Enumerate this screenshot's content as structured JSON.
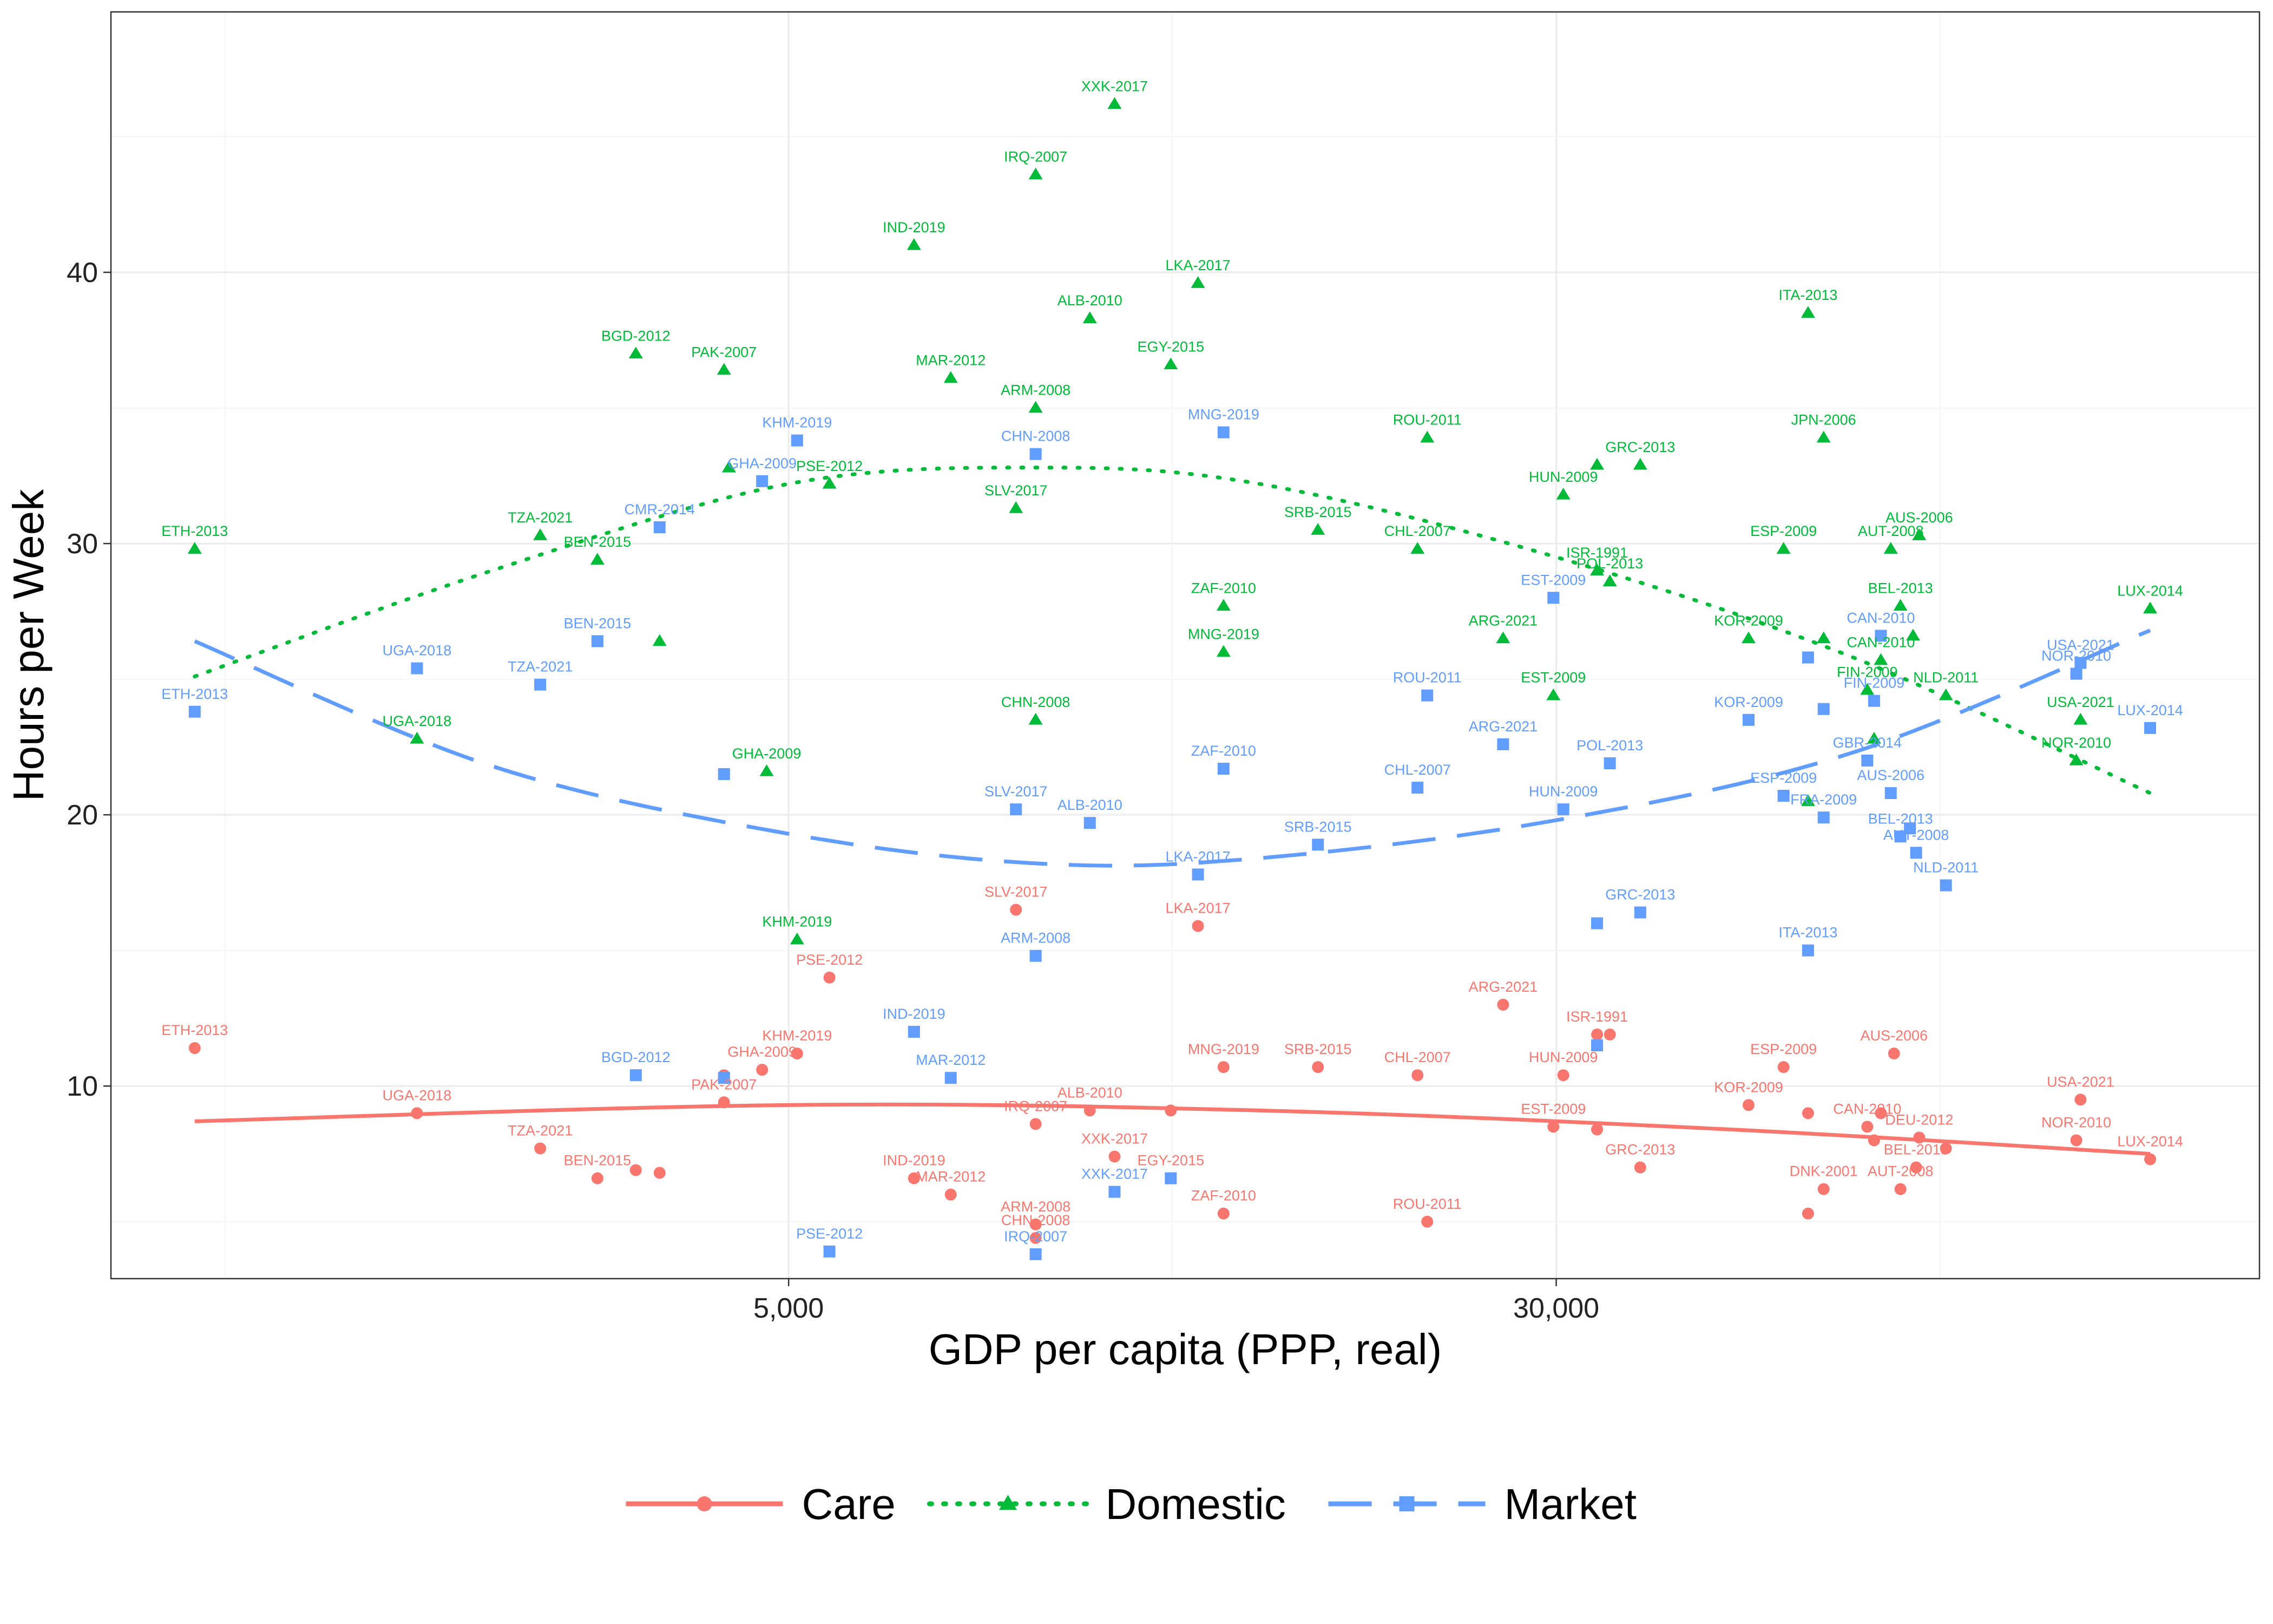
{
  "chart_data": {
    "type": "scatter",
    "title": "",
    "xlabel": "GDP per capita (PPP, real)",
    "ylabel": "Hours per Week",
    "x_scale": "log",
    "x_ticks": [
      {
        "value": 5000,
        "label": "5,000"
      },
      {
        "value": 30000,
        "label": "30,000"
      }
    ],
    "y_ticks": [
      {
        "value": 10,
        "label": "10"
      },
      {
        "value": 20,
        "label": "20"
      },
      {
        "value": 30,
        "label": "30"
      },
      {
        "value": 40,
        "label": "40"
      }
    ],
    "xlim": [
      1000,
      150000
    ],
    "ylim": [
      3,
      48
    ],
    "legend_position": "bottom",
    "series": [
      {
        "name": "Care",
        "color": "#F8766D",
        "marker": "circle",
        "line_style": "solid",
        "trend": [
          [
            1250,
            8.7
          ],
          [
            5000,
            9.3
          ],
          [
            15000,
            9.1
          ],
          [
            45000,
            8.4
          ],
          [
            120000,
            7.5
          ]
        ],
        "points": [
          {
            "label": "ETH-2013",
            "x": 1250,
            "y": 11.4
          },
          {
            "label": "UGA-2018",
            "x": 2100,
            "y": 9.0
          },
          {
            "label": "TZA-2021",
            "x": 2800,
            "y": 7.7
          },
          {
            "label": "BEN-2015",
            "x": 3200,
            "y": 6.6
          },
          {
            "label": "",
            "x": 3500,
            "y": 6.9
          },
          {
            "label": "",
            "x": 3700,
            "y": 6.8
          },
          {
            "label": "PAK-2007",
            "x": 4300,
            "y": 9.4
          },
          {
            "label": "",
            "x": 4300,
            "y": 10.4
          },
          {
            "label": "GHA-2009",
            "x": 4700,
            "y": 10.6
          },
          {
            "label": "KHM-2019",
            "x": 5100,
            "y": 11.2
          },
          {
            "label": "PSE-2012",
            "x": 5500,
            "y": 14.0
          },
          {
            "label": "IND-2019",
            "x": 6700,
            "y": 6.6
          },
          {
            "label": "MAR-2012",
            "x": 7300,
            "y": 6.0
          },
          {
            "label": "SLV-2017",
            "x": 8500,
            "y": 16.5
          },
          {
            "label": "ARM-2008",
            "x": 8900,
            "y": 4.9
          },
          {
            "label": "CHN-2008",
            "x": 8900,
            "y": 4.4
          },
          {
            "label": "IRQ-2007",
            "x": 8900,
            "y": 8.6
          },
          {
            "label": "ALB-2010",
            "x": 10100,
            "y": 9.1
          },
          {
            "label": "XXK-2017",
            "x": 10700,
            "y": 7.4
          },
          {
            "label": "",
            "x": 12200,
            "y": 9.1
          },
          {
            "label": "LKA-2017",
            "x": 13000,
            "y": 15.9
          },
          {
            "label": "EGY-2015",
            "x": 12200,
            "y": 6.6
          },
          {
            "label": "ZAF-2010",
            "x": 13800,
            "y": 5.3
          },
          {
            "label": "MNG-2019",
            "x": 13800,
            "y": 10.7
          },
          {
            "label": "SRB-2015",
            "x": 17200,
            "y": 10.7
          },
          {
            "label": "CHL-2007",
            "x": 21700,
            "y": 10.4
          },
          {
            "label": "ROU-2011",
            "x": 22200,
            "y": 5.0
          },
          {
            "label": "ARG-2021",
            "x": 26500,
            "y": 13.0
          },
          {
            "label": "HUN-2009",
            "x": 30500,
            "y": 10.4
          },
          {
            "label": "EST-2009",
            "x": 29800,
            "y": 8.5
          },
          {
            "label": "ISR-1991",
            "x": 33000,
            "y": 11.9
          },
          {
            "label": "",
            "x": 34000,
            "y": 11.9
          },
          {
            "label": "",
            "x": 33000,
            "y": 8.4
          },
          {
            "label": "GRC-2013",
            "x": 36500,
            "y": 7.0
          },
          {
            "label": "KOR-2009",
            "x": 47000,
            "y": 9.3
          },
          {
            "label": "ESP-2009",
            "x": 51000,
            "y": 10.7
          },
          {
            "label": "",
            "x": 54000,
            "y": 9.0
          },
          {
            "label": "DNK-2001",
            "x": 56000,
            "y": 6.2
          },
          {
            "label": "",
            "x": 54000,
            "y": 5.3
          },
          {
            "label": "CAN-2010",
            "x": 62000,
            "y": 8.5
          },
          {
            "label": "",
            "x": 63000,
            "y": 8.0
          },
          {
            "label": "",
            "x": 64000,
            "y": 9.0
          },
          {
            "label": "AUS-2006",
            "x": 66000,
            "y": 11.2
          },
          {
            "label": "AUT-2008",
            "x": 67000,
            "y": 6.2
          },
          {
            "label": "BEL-2013",
            "x": 69500,
            "y": 7.0
          },
          {
            "label": "DEU-2012",
            "x": 70000,
            "y": 8.1
          },
          {
            "label": "",
            "x": 74500,
            "y": 7.7
          },
          {
            "label": "USA-2021",
            "x": 102000,
            "y": 9.5
          },
          {
            "label": "NOR-2010",
            "x": 101000,
            "y": 8.0
          },
          {
            "label": "LUX-2014",
            "x": 120000,
            "y": 7.3
          }
        ]
      },
      {
        "name": "Domestic",
        "color": "#00BA38",
        "marker": "triangle",
        "line_style": "dotted",
        "trend": [
          [
            1250,
            25.1
          ],
          [
            2500,
            29.0
          ],
          [
            5000,
            32.2
          ],
          [
            9000,
            32.8
          ],
          [
            15000,
            32.2
          ],
          [
            30000,
            29.5
          ],
          [
            60000,
            25.8
          ],
          [
            120000,
            20.8
          ]
        ],
        "points": [
          {
            "label": "ETH-2013",
            "x": 1250,
            "y": 29.8
          },
          {
            "label": "UGA-2018",
            "x": 2100,
            "y": 22.8
          },
          {
            "label": "TZA-2021",
            "x": 2800,
            "y": 30.3
          },
          {
            "label": "BEN-2015",
            "x": 3200,
            "y": 29.4
          },
          {
            "label": "",
            "x": 3700,
            "y": 26.4
          },
          {
            "label": "BGD-2012",
            "x": 3500,
            "y": 37.0
          },
          {
            "label": "PAK-2007",
            "x": 4300,
            "y": 36.4
          },
          {
            "label": "",
            "x": 4350,
            "y": 32.8
          },
          {
            "label": "GHA-2009",
            "x": 4750,
            "y": 21.6
          },
          {
            "label": "KHM-2019",
            "x": 5100,
            "y": 15.4
          },
          {
            "label": "PSE-2012",
            "x": 5500,
            "y": 32.2
          },
          {
            "label": "IND-2019",
            "x": 6700,
            "y": 41.0
          },
          {
            "label": "MAR-2012",
            "x": 7300,
            "y": 36.1
          },
          {
            "label": "IRQ-2007",
            "x": 8900,
            "y": 43.6
          },
          {
            "label": "ARM-2008",
            "x": 8900,
            "y": 35.0
          },
          {
            "label": "SLV-2017",
            "x": 8500,
            "y": 31.3
          },
          {
            "label": "CHN-2008",
            "x": 8900,
            "y": 23.5
          },
          {
            "label": "ALB-2010",
            "x": 10100,
            "y": 38.3
          },
          {
            "label": "XXK-2017",
            "x": 10700,
            "y": 46.2
          },
          {
            "label": "LKA-2017",
            "x": 13000,
            "y": 39.6
          },
          {
            "label": "EGY-2015",
            "x": 12200,
            "y": 36.6
          },
          {
            "label": "ZAF-2010",
            "x": 13800,
            "y": 27.7
          },
          {
            "label": "MNG-2019",
            "x": 13800,
            "y": 26.0
          },
          {
            "label": "SRB-2015",
            "x": 17200,
            "y": 30.5
          },
          {
            "label": "CHL-2007",
            "x": 21700,
            "y": 29.8
          },
          {
            "label": "ROU-2011",
            "x": 22200,
            "y": 33.9
          },
          {
            "label": "ARG-2021",
            "x": 26500,
            "y": 26.5
          },
          {
            "label": "EST-2009",
            "x": 29800,
            "y": 24.4
          },
          {
            "label": "HUN-2009",
            "x": 30500,
            "y": 31.8
          },
          {
            "label": "ISR-1991",
            "x": 33000,
            "y": 29.0
          },
          {
            "label": "",
            "x": 33000,
            "y": 32.9
          },
          {
            "label": "POL-2013",
            "x": 34000,
            "y": 28.6
          },
          {
            "label": "GRC-2013",
            "x": 36500,
            "y": 32.9
          },
          {
            "label": "KOR-2009",
            "x": 47000,
            "y": 26.5
          },
          {
            "label": "ESP-2009",
            "x": 51000,
            "y": 29.8
          },
          {
            "label": "ITA-2013",
            "x": 54000,
            "y": 38.5
          },
          {
            "label": "",
            "x": 54000,
            "y": 20.5
          },
          {
            "label": "JPN-2006",
            "x": 56000,
            "y": 33.9
          },
          {
            "label": "",
            "x": 56000,
            "y": 26.5
          },
          {
            "label": "FIN-2009",
            "x": 62000,
            "y": 24.6
          },
          {
            "label": "",
            "x": 63000,
            "y": 22.8
          },
          {
            "label": "CAN-2010",
            "x": 64000,
            "y": 25.7
          },
          {
            "label": "AUT-2008",
            "x": 65500,
            "y": 29.8
          },
          {
            "label": "BEL-2013",
            "x": 67000,
            "y": 27.7
          },
          {
            "label": "",
            "x": 69000,
            "y": 26.6
          },
          {
            "label": "AUS-2006",
            "x": 70000,
            "y": 30.3
          },
          {
            "label": "NLD-2011",
            "x": 74500,
            "y": 24.4
          },
          {
            "label": "NOR-2010",
            "x": 101000,
            "y": 22.0
          },
          {
            "label": "USA-2021",
            "x": 102000,
            "y": 23.5
          },
          {
            "label": "LUX-2014",
            "x": 120000,
            "y": 27.6
          }
        ]
      },
      {
        "name": "Market",
        "color": "#619CFF",
        "marker": "square",
        "line_style": "dashed",
        "trend": [
          [
            1250,
            26.4
          ],
          [
            2500,
            21.8
          ],
          [
            5000,
            19.3
          ],
          [
            9000,
            18.2
          ],
          [
            15000,
            18.4
          ],
          [
            30000,
            19.8
          ],
          [
            60000,
            22.3
          ],
          [
            120000,
            26.8
          ]
        ],
        "points": [
          {
            "label": "ETH-2013",
            "x": 1250,
            "y": 23.8
          },
          {
            "label": "UGA-2018",
            "x": 2100,
            "y": 25.4
          },
          {
            "label": "TZA-2021",
            "x": 2800,
            "y": 24.8
          },
          {
            "label": "BEN-2015",
            "x": 3200,
            "y": 26.4
          },
          {
            "label": "CMR-2014",
            "x": 3700,
            "y": 30.6
          },
          {
            "label": "BGD-2012",
            "x": 3500,
            "y": 10.4
          },
          {
            "label": "",
            "x": 4300,
            "y": 21.5
          },
          {
            "label": "",
            "x": 4300,
            "y": 10.3
          },
          {
            "label": "GHA-2009",
            "x": 4700,
            "y": 32.3
          },
          {
            "label": "KHM-2019",
            "x": 5100,
            "y": 33.8
          },
          {
            "label": "PSE-2012",
            "x": 5500,
            "y": 3.9
          },
          {
            "label": "IND-2019",
            "x": 6700,
            "y": 12.0
          },
          {
            "label": "MAR-2012",
            "x": 7300,
            "y": 10.3
          },
          {
            "label": "SLV-2017",
            "x": 8500,
            "y": 20.2
          },
          {
            "label": "ARM-2008",
            "x": 8900,
            "y": 14.8
          },
          {
            "label": "CHN-2008",
            "x": 8900,
            "y": 33.3
          },
          {
            "label": "IRQ-2007",
            "x": 8900,
            "y": 3.8
          },
          {
            "label": "ALB-2010",
            "x": 10100,
            "y": 19.7
          },
          {
            "label": "XXK-2017",
            "x": 10700,
            "y": 6.1
          },
          {
            "label": "",
            "x": 12200,
            "y": 6.6
          },
          {
            "label": "LKA-2017",
            "x": 13000,
            "y": 17.8
          },
          {
            "label": "ZAF-2010",
            "x": 13800,
            "y": 21.7
          },
          {
            "label": "MNG-2019",
            "x": 13800,
            "y": 34.1
          },
          {
            "label": "SRB-2015",
            "x": 17200,
            "y": 18.9
          },
          {
            "label": "CHL-2007",
            "x": 21700,
            "y": 21.0
          },
          {
            "label": "ROU-2011",
            "x": 22200,
            "y": 24.4
          },
          {
            "label": "ARG-2021",
            "x": 26500,
            "y": 22.6
          },
          {
            "label": "EST-2009",
            "x": 29800,
            "y": 28.0
          },
          {
            "label": "HUN-2009",
            "x": 30500,
            "y": 20.2
          },
          {
            "label": "",
            "x": 33000,
            "y": 16.0
          },
          {
            "label": "",
            "x": 33000,
            "y": 11.5
          },
          {
            "label": "POL-2013",
            "x": 34000,
            "y": 21.9
          },
          {
            "label": "GRC-2013",
            "x": 36500,
            "y": 16.4
          },
          {
            "label": "KOR-2009",
            "x": 47000,
            "y": 23.5
          },
          {
            "label": "ESP-2009",
            "x": 51000,
            "y": 20.7
          },
          {
            "label": "ITA-2013",
            "x": 54000,
            "y": 15.0
          },
          {
            "label": "",
            "x": 54000,
            "y": 25.8
          },
          {
            "label": "FRA-2009",
            "x": 56000,
            "y": 19.9
          },
          {
            "label": "",
            "x": 56000,
            "y": 23.9
          },
          {
            "label": "GBR-2014",
            "x": 62000,
            "y": 22.0
          },
          {
            "label": "FIN-2009",
            "x": 63000,
            "y": 24.2
          },
          {
            "label": "CAN-2010",
            "x": 64000,
            "y": 26.6
          },
          {
            "label": "AUS-2006",
            "x": 65500,
            "y": 20.8
          },
          {
            "label": "BEL-2013",
            "x": 67000,
            "y": 19.2
          },
          {
            "label": "",
            "x": 68500,
            "y": 19.5
          },
          {
            "label": "AUT-2008",
            "x": 69500,
            "y": 18.6
          },
          {
            "label": "NLD-2011",
            "x": 74500,
            "y": 17.4
          },
          {
            "label": "USA-2021",
            "x": 102000,
            "y": 25.6
          },
          {
            "label": "NOR-2010",
            "x": 101000,
            "y": 25.2
          },
          {
            "label": "LUX-2014",
            "x": 120000,
            "y": 23.2
          }
        ]
      }
    ]
  }
}
